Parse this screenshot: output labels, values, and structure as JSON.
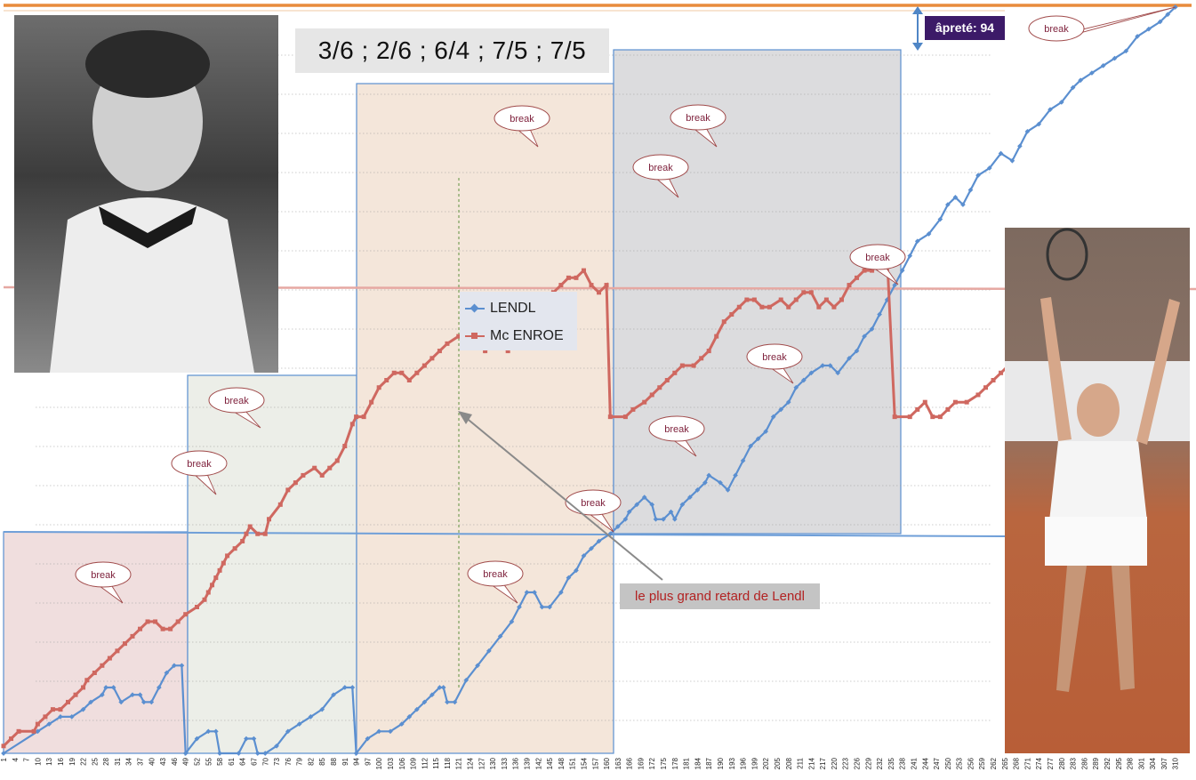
{
  "score": "3/6 ; 2/6 ; 6/4 ; 7/5 ; 7/5",
  "aprete_label": "âpreté: 94",
  "annotation": "le plus grand retard de Lendl",
  "break_label": "break",
  "colors": {
    "lendl": "#5b8fd0",
    "mcenroe": "#cf6860",
    "set1": "#f0dede",
    "set2": "#eceee8",
    "set3": "#f4e6da",
    "set4": "#dcdcde",
    "orange": "#e88b3c"
  },
  "photos": {
    "left": "mcenroe-photo",
    "right": "lendl-photo"
  },
  "chart_data": {
    "type": "line",
    "title": "",
    "xlabel": "",
    "ylabel": "",
    "x_ticks": [
      "1",
      "4",
      "7",
      "10",
      "13",
      "16",
      "19",
      "22",
      "25",
      "28",
      "31",
      "34",
      "37",
      "40",
      "43",
      "46",
      "49",
      "52",
      "55",
      "58",
      "61",
      "64",
      "67",
      "70",
      "73",
      "76",
      "79",
      "82",
      "85",
      "88",
      "91",
      "94",
      "97",
      "100",
      "103",
      "106",
      "109",
      "112",
      "115",
      "118",
      "121",
      "124",
      "127",
      "130",
      "133",
      "136",
      "139",
      "142",
      "145",
      "148",
      "151",
      "154",
      "157",
      "160",
      "163",
      "166",
      "169",
      "172",
      "175",
      "178",
      "181",
      "184",
      "187",
      "190",
      "193",
      "196",
      "199",
      "202",
      "205",
      "208",
      "211",
      "214",
      "217",
      "220",
      "223",
      "226",
      "229",
      "232",
      "235",
      "238",
      "241",
      "244",
      "247",
      "250",
      "253",
      "256",
      "259",
      "262",
      "265",
      "268",
      "271",
      "274",
      "277",
      "280",
      "283",
      "286",
      "289",
      "292",
      "295",
      "298",
      "301",
      "304",
      "307",
      "310"
    ],
    "x_range": [
      1,
      311
    ],
    "grid": false,
    "legend_position": "center",
    "sets": [
      {
        "start": 1,
        "end": 49
      },
      {
        "start": 49,
        "end": 94
      },
      {
        "start": 94,
        "end": 161
      },
      {
        "start": 161,
        "end": 236
      }
    ],
    "series": [
      {
        "name": "LENDL",
        "values": [
          [
            1,
            0
          ],
          [
            10,
            3
          ],
          [
            13,
            4
          ],
          [
            16,
            5
          ],
          [
            19,
            5
          ],
          [
            22,
            6
          ],
          [
            24,
            7
          ],
          [
            27,
            8
          ],
          [
            28,
            9
          ],
          [
            30,
            9
          ],
          [
            32,
            7
          ],
          [
            35,
            8
          ],
          [
            37,
            8
          ],
          [
            38,
            7
          ],
          [
            40,
            7
          ],
          [
            42,
            9
          ],
          [
            44,
            11
          ],
          [
            46,
            12
          ],
          [
            48,
            12
          ],
          [
            49,
            0
          ],
          [
            52,
            2
          ],
          [
            55,
            3
          ],
          [
            57,
            3
          ],
          [
            58,
            0
          ],
          [
            63,
            0
          ],
          [
            65,
            2
          ],
          [
            67,
            2
          ],
          [
            68,
            0
          ],
          [
            70,
            0
          ],
          [
            73,
            1
          ],
          [
            76,
            3
          ],
          [
            79,
            4
          ],
          [
            82,
            5
          ],
          [
            85,
            6
          ],
          [
            88,
            8
          ],
          [
            91,
            9
          ],
          [
            93,
            9
          ],
          [
            94,
            0
          ],
          [
            97,
            2
          ],
          [
            100,
            3
          ],
          [
            103,
            3
          ],
          [
            106,
            4
          ],
          [
            108,
            5
          ],
          [
            110,
            6
          ],
          [
            112,
            7
          ],
          [
            114,
            8
          ],
          [
            116,
            9
          ],
          [
            117,
            9
          ],
          [
            118,
            7
          ],
          [
            120,
            7
          ],
          [
            123,
            10
          ],
          [
            126,
            12
          ],
          [
            129,
            14
          ],
          [
            132,
            16
          ],
          [
            135,
            18
          ],
          [
            137,
            20
          ],
          [
            139,
            22
          ],
          [
            141,
            22
          ],
          [
            143,
            20
          ],
          [
            145,
            20
          ],
          [
            148,
            22
          ],
          [
            150,
            24
          ],
          [
            152,
            25
          ],
          [
            154,
            27
          ],
          [
            156,
            28
          ],
          [
            158,
            29
          ],
          [
            161,
            30
          ],
          [
            163,
            31
          ],
          [
            165,
            32
          ],
          [
            166,
            33
          ],
          [
            168,
            34
          ],
          [
            170,
            35
          ],
          [
            172,
            34
          ],
          [
            173,
            32
          ],
          [
            175,
            32
          ],
          [
            177,
            33
          ],
          [
            178,
            32
          ],
          [
            180,
            34
          ],
          [
            182,
            35
          ],
          [
            184,
            36
          ],
          [
            186,
            37
          ],
          [
            187,
            38
          ],
          [
            190,
            37
          ],
          [
            192,
            36
          ],
          [
            194,
            38
          ],
          [
            196,
            40
          ],
          [
            198,
            42
          ],
          [
            200,
            43
          ],
          [
            202,
            44
          ],
          [
            204,
            46
          ],
          [
            206,
            47
          ],
          [
            208,
            48
          ],
          [
            210,
            50
          ],
          [
            212,
            51
          ],
          [
            214,
            52
          ],
          [
            217,
            53
          ],
          [
            219,
            53
          ],
          [
            221,
            52
          ],
          [
            224,
            54
          ],
          [
            226,
            55
          ],
          [
            228,
            57
          ],
          [
            230,
            58
          ],
          [
            232,
            60
          ],
          [
            234,
            62
          ],
          [
            236,
            64
          ],
          [
            238,
            66
          ],
          [
            240,
            68
          ],
          [
            242,
            70
          ],
          [
            245,
            71
          ],
          [
            248,
            73
          ],
          [
            250,
            75
          ],
          [
            252,
            76
          ],
          [
            254,
            75
          ],
          [
            256,
            77
          ],
          [
            258,
            79
          ],
          [
            261,
            80
          ],
          [
            264,
            82
          ],
          [
            267,
            81
          ],
          [
            269,
            83
          ],
          [
            271,
            85
          ],
          [
            274,
            86
          ],
          [
            277,
            88
          ],
          [
            280,
            89
          ],
          [
            283,
            91
          ],
          [
            285,
            92
          ],
          [
            288,
            93
          ],
          [
            291,
            94
          ],
          [
            294,
            95
          ],
          [
            297,
            96
          ],
          [
            300,
            98
          ],
          [
            303,
            99
          ],
          [
            306,
            100
          ],
          [
            308,
            101
          ],
          [
            310,
            102
          ]
        ]
      },
      {
        "name": "Mc ENROE",
        "values": [
          [
            1,
            1
          ],
          [
            3,
            2
          ],
          [
            5,
            3
          ],
          [
            9,
            3
          ],
          [
            10,
            4
          ],
          [
            12,
            5
          ],
          [
            14,
            6
          ],
          [
            16,
            6
          ],
          [
            18,
            7
          ],
          [
            20,
            8
          ],
          [
            22,
            9
          ],
          [
            23,
            10
          ],
          [
            25,
            11
          ],
          [
            27,
            12
          ],
          [
            29,
            13
          ],
          [
            31,
            14
          ],
          [
            33,
            15
          ],
          [
            35,
            16
          ],
          [
            37,
            17
          ],
          [
            39,
            18
          ],
          [
            41,
            18
          ],
          [
            43,
            17
          ],
          [
            45,
            17
          ],
          [
            47,
            18
          ],
          [
            49,
            19
          ],
          [
            52,
            20
          ],
          [
            54,
            21
          ],
          [
            55,
            22
          ],
          [
            56,
            23
          ],
          [
            57,
            24
          ],
          [
            58,
            25
          ],
          [
            59,
            26
          ],
          [
            60,
            27
          ],
          [
            62,
            28
          ],
          [
            64,
            29
          ],
          [
            65,
            30
          ],
          [
            66,
            31
          ],
          [
            68,
            30
          ],
          [
            70,
            30
          ],
          [
            71,
            32
          ],
          [
            74,
            34
          ],
          [
            76,
            36
          ],
          [
            78,
            37
          ],
          [
            80,
            38
          ],
          [
            83,
            39
          ],
          [
            85,
            38
          ],
          [
            87,
            39
          ],
          [
            89,
            40
          ],
          [
            91,
            42
          ],
          [
            93,
            45
          ],
          [
            94,
            46
          ],
          [
            96,
            46
          ],
          [
            98,
            48
          ],
          [
            100,
            50
          ],
          [
            102,
            51
          ],
          [
            104,
            52
          ],
          [
            106,
            52
          ],
          [
            108,
            51
          ],
          [
            110,
            52
          ],
          [
            112,
            53
          ],
          [
            114,
            54
          ],
          [
            116,
            55
          ],
          [
            118,
            56
          ],
          [
            121,
            57
          ],
          [
            123,
            57
          ],
          [
            126,
            58
          ],
          [
            128,
            55
          ],
          [
            130,
            56
          ],
          [
            132,
            56
          ],
          [
            134,
            55
          ],
          [
            136,
            57
          ],
          [
            138,
            57
          ],
          [
            140,
            59
          ],
          [
            142,
            60
          ],
          [
            144,
            61
          ],
          [
            146,
            63
          ],
          [
            148,
            64
          ],
          [
            150,
            65
          ],
          [
            152,
            65
          ],
          [
            154,
            66
          ],
          [
            156,
            64
          ],
          [
            158,
            63
          ],
          [
            160,
            64
          ],
          [
            161,
            46
          ],
          [
            165,
            46
          ],
          [
            167,
            47
          ],
          [
            170,
            48
          ],
          [
            172,
            49
          ],
          [
            174,
            50
          ],
          [
            176,
            51
          ],
          [
            178,
            52
          ],
          [
            180,
            53
          ],
          [
            183,
            53
          ],
          [
            185,
            54
          ],
          [
            187,
            55
          ],
          [
            189,
            57
          ],
          [
            191,
            59
          ],
          [
            193,
            60
          ],
          [
            195,
            61
          ],
          [
            197,
            62
          ],
          [
            199,
            62
          ],
          [
            201,
            61
          ],
          [
            203,
            61
          ],
          [
            206,
            62
          ],
          [
            208,
            61
          ],
          [
            210,
            62
          ],
          [
            212,
            63
          ],
          [
            214,
            63
          ],
          [
            216,
            61
          ],
          [
            218,
            62
          ],
          [
            220,
            61
          ],
          [
            222,
            62
          ],
          [
            224,
            64
          ],
          [
            226,
            65
          ],
          [
            228,
            66
          ],
          [
            230,
            66
          ],
          [
            232,
            67
          ],
          [
            234,
            68
          ],
          [
            236,
            46
          ],
          [
            240,
            46
          ],
          [
            242,
            47
          ],
          [
            244,
            48
          ],
          [
            246,
            46
          ],
          [
            248,
            46
          ],
          [
            250,
            47
          ],
          [
            252,
            48
          ],
          [
            255,
            48
          ],
          [
            258,
            49
          ],
          [
            260,
            50
          ],
          [
            262,
            51
          ],
          [
            264,
            52
          ],
          [
            266,
            53
          ],
          [
            268,
            53
          ],
          [
            270,
            54
          ],
          [
            272,
            56
          ],
          [
            274,
            57
          ],
          [
            276,
            57
          ],
          [
            278,
            58
          ],
          [
            280,
            58
          ],
          [
            282,
            59
          ],
          [
            284,
            60
          ],
          [
            286,
            58
          ],
          [
            288,
            60
          ],
          [
            290,
            61
          ],
          [
            292,
            61
          ],
          [
            294,
            62
          ],
          [
            296,
            62
          ],
          [
            298,
            63
          ],
          [
            300,
            64
          ],
          [
            302,
            65
          ],
          [
            304,
            65
          ],
          [
            306,
            66
          ],
          [
            308,
            66
          ],
          [
            309,
            67
          ],
          [
            310,
            66
          ]
        ]
      }
    ],
    "annotations": [
      "break",
      "break",
      "break",
      "break",
      "break",
      "break",
      "break",
      "break",
      "break",
      "break",
      "break",
      "break",
      "break"
    ]
  }
}
